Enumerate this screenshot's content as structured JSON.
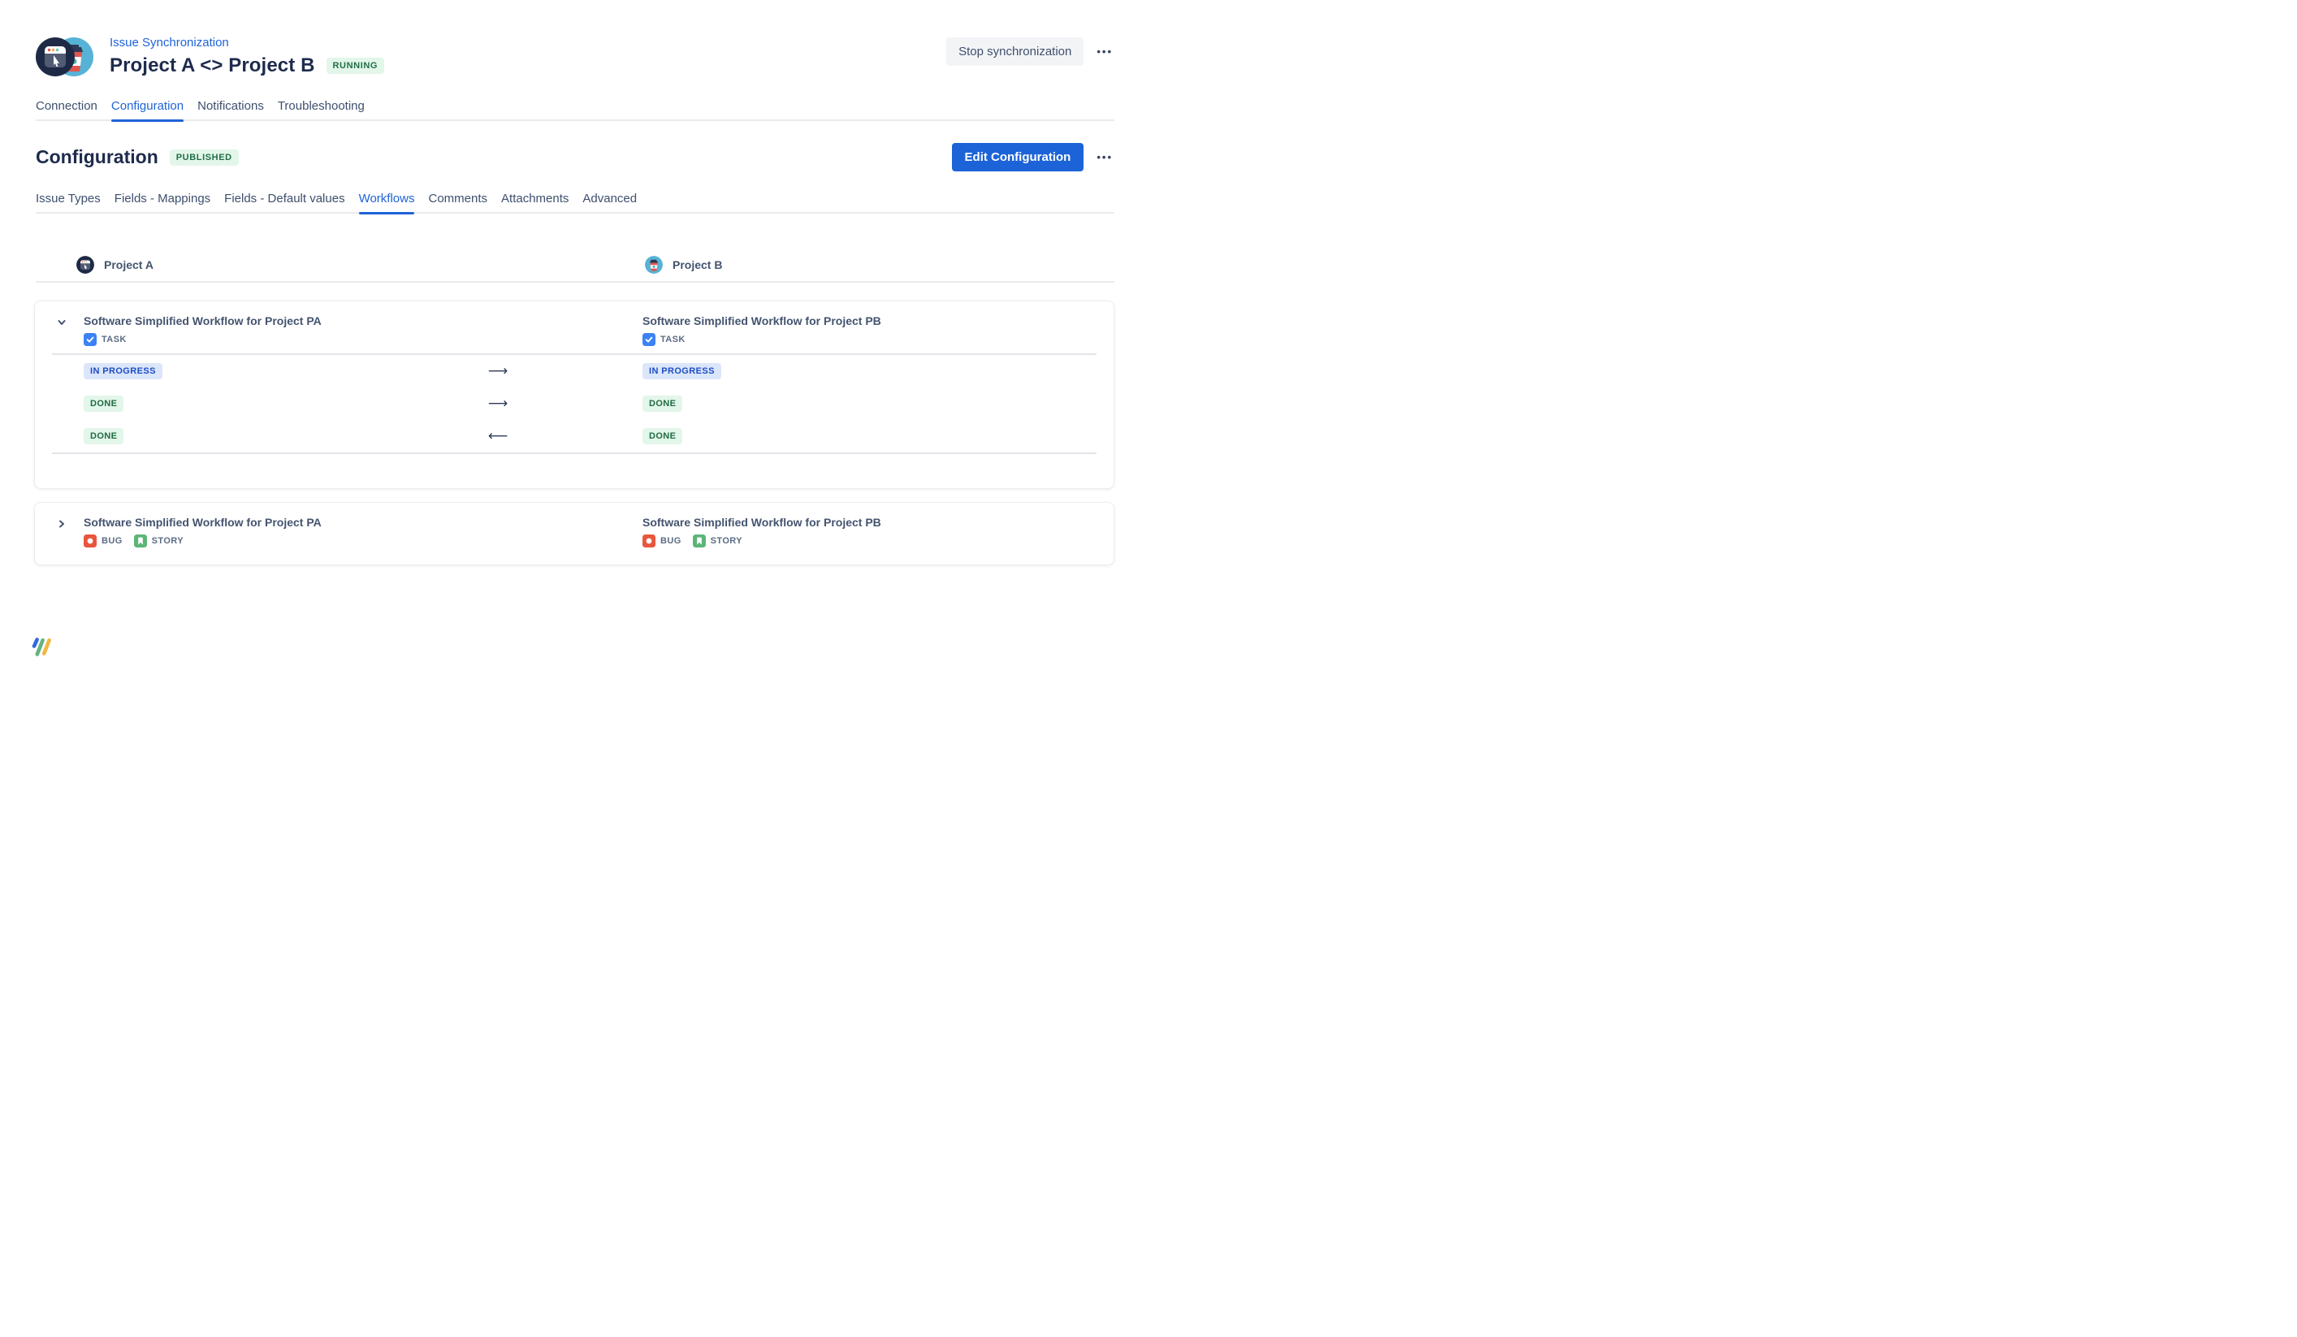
{
  "header": {
    "breadcrumb": "Issue Synchronization",
    "title": "Project A <> Project B",
    "status_badge": "RUNNING",
    "stop_button": "Stop synchronization",
    "more_label": "•••"
  },
  "tabs": {
    "items": [
      {
        "label": "Connection",
        "active": false
      },
      {
        "label": "Configuration",
        "active": true
      },
      {
        "label": "Notifications",
        "active": false
      },
      {
        "label": "Troubleshooting",
        "active": false
      }
    ]
  },
  "section": {
    "title": "Configuration",
    "badge": "PUBLISHED",
    "edit_button": "Edit Configuration",
    "more_label": "•••"
  },
  "subtabs": {
    "items": [
      {
        "label": "Issue Types",
        "active": false
      },
      {
        "label": "Fields - Mappings",
        "active": false
      },
      {
        "label": "Fields - Default values",
        "active": false
      },
      {
        "label": "Workflows",
        "active": true
      },
      {
        "label": "Comments",
        "active": false
      },
      {
        "label": "Attachments",
        "active": false
      },
      {
        "label": "Advanced",
        "active": false
      }
    ]
  },
  "table": {
    "columns": [
      {
        "label": "Project A",
        "icon": "browser-project-icon"
      },
      {
        "label": "Project B",
        "icon": "coffee-project-icon"
      }
    ]
  },
  "workflows": [
    {
      "expanded": true,
      "left": {
        "title": "Software Simplified Workflow for Project PA",
        "issue_types": [
          {
            "label": "TASK",
            "type": "task"
          }
        ]
      },
      "right": {
        "title": "Software Simplified Workflow for Project PB",
        "issue_types": [
          {
            "label": "TASK",
            "type": "task"
          }
        ]
      },
      "mappings": [
        {
          "from": "IN PROGRESS",
          "from_kind": "inprogress",
          "dir": "right",
          "to": "IN PROGRESS",
          "to_kind": "inprogress"
        },
        {
          "from": "DONE",
          "from_kind": "done",
          "dir": "right",
          "to": "DONE",
          "to_kind": "done"
        },
        {
          "from": "DONE",
          "from_kind": "done",
          "dir": "left",
          "to": "DONE",
          "to_kind": "done"
        }
      ]
    },
    {
      "expanded": false,
      "left": {
        "title": "Software Simplified Workflow for Project PA",
        "issue_types": [
          {
            "label": "BUG",
            "type": "bug"
          },
          {
            "label": "STORY",
            "type": "story"
          }
        ]
      },
      "right": {
        "title": "Software Simplified Workflow for Project PB",
        "issue_types": [
          {
            "label": "BUG",
            "type": "bug"
          },
          {
            "label": "STORY",
            "type": "story"
          }
        ]
      },
      "mappings": []
    }
  ],
  "glyphs": {
    "arrow_right": "⟶",
    "arrow_left": "⟵"
  },
  "colors": {
    "accent_blue": "#1d63d8",
    "navy_text": "#1e2b4d",
    "slate_text": "#44546f",
    "badge_green_bg": "#e3f6ea",
    "badge_green_text": "#216e46",
    "badge_blue_bg": "#dce6fb",
    "badge_blue_text": "#1b4dc4",
    "task_icon": "#3c82f6",
    "bug_icon": "#e8563d",
    "story_icon": "#5cb576",
    "logo_bars": [
      "#2f6ae0",
      "#63b37e",
      "#f2b642"
    ]
  }
}
